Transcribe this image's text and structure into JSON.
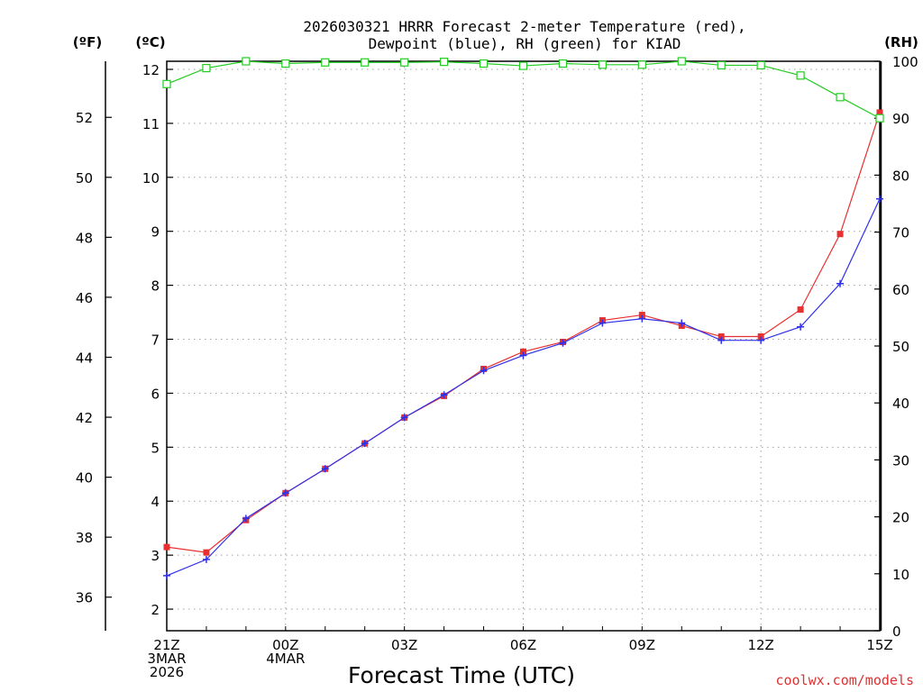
{
  "chart_data": {
    "type": "line",
    "title_line1": "2026030321 HRRR Forecast 2-meter Temperature (red),",
    "title_line2": "Dewpoint (blue), RH (green) for KIAD",
    "unit_f": "(ºF)",
    "unit_c": "(ºC)",
    "unit_rh": "(RH)",
    "xlabel": "Forecast Time (UTC)",
    "credit": "coolwx.com/models",
    "x_hours": [
      0,
      1,
      2,
      3,
      4,
      5,
      6,
      7,
      8,
      9,
      10,
      11,
      12,
      13,
      14,
      15,
      16,
      17,
      18
    ],
    "x_ticks": [
      {
        "hour": 0,
        "lines": [
          "21Z",
          "3MAR",
          "2026"
        ]
      },
      {
        "hour": 3,
        "lines": [
          "00Z",
          "4MAR"
        ]
      },
      {
        "hour": 6,
        "lines": [
          "03Z"
        ]
      },
      {
        "hour": 9,
        "lines": [
          "06Z"
        ]
      },
      {
        "hour": 12,
        "lines": [
          "09Z"
        ]
      },
      {
        "hour": 15,
        "lines": [
          "12Z"
        ]
      },
      {
        "hour": 18,
        "lines": [
          "15Z"
        ]
      }
    ],
    "c_ticks": [
      "2",
      "3",
      "4",
      "5",
      "6",
      "7",
      "8",
      "9",
      "10",
      "11",
      "12"
    ],
    "f_ticks": [
      "36",
      "38",
      "40",
      "42",
      "44",
      "46",
      "48",
      "50",
      "52"
    ],
    "rh_ticks": [
      "0",
      "10",
      "20",
      "30",
      "40",
      "50",
      "60",
      "70",
      "80",
      "90",
      "100"
    ],
    "c_range": [
      1.6,
      12.15
    ],
    "rh_range": [
      0,
      100
    ],
    "series": [
      {
        "name": "Temperature",
        "unit": "C",
        "color": "#e83030",
        "marker": "square-filled",
        "values": [
          3.15,
          3.05,
          3.65,
          4.15,
          4.6,
          5.07,
          5.55,
          5.95,
          6.45,
          6.77,
          6.95,
          7.35,
          7.45,
          7.25,
          7.05,
          7.05,
          7.55,
          8.95,
          11.2
        ]
      },
      {
        "name": "Dewpoint",
        "unit": "C",
        "color": "#3030e8",
        "marker": "plus",
        "values": [
          2.62,
          2.92,
          3.68,
          4.15,
          4.6,
          5.07,
          5.55,
          5.97,
          6.42,
          6.7,
          6.93,
          7.3,
          7.38,
          7.3,
          6.98,
          6.98,
          7.23,
          8.03,
          9.6
        ]
      },
      {
        "name": "RH",
        "unit": "%",
        "color": "#22cc22",
        "marker": "square-open",
        "values": [
          96,
          98.8,
          100,
          99.6,
          99.8,
          99.8,
          99.8,
          99.9,
          99.6,
          99.2,
          99.6,
          99.4,
          99.4,
          100,
          99.3,
          99.3,
          97.5,
          93.7,
          90
        ]
      }
    ]
  }
}
